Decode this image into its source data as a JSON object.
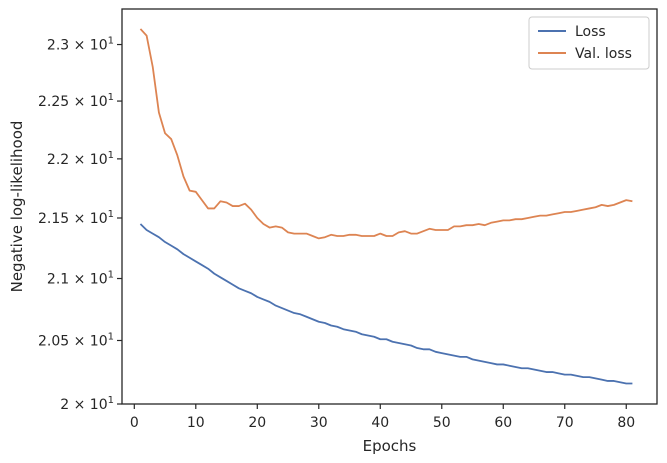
{
  "chart_data": {
    "type": "line",
    "xlabel": "Epochs",
    "ylabel": "Negative log-likelihood",
    "xlim": [
      -2,
      85
    ],
    "ylim": [
      20.0,
      23.32
    ],
    "xticks": [
      0,
      10,
      20,
      30,
      40,
      50,
      60,
      70,
      80
    ],
    "yticks": [
      {
        "value": 20.0,
        "mantissa": "2",
        "exponent": "1"
      },
      {
        "value": 20.5,
        "mantissa": "2.05",
        "exponent": "1"
      },
      {
        "value": 21.0,
        "mantissa": "2.1",
        "exponent": "1"
      },
      {
        "value": 21.5,
        "mantissa": "2.15",
        "exponent": "1"
      },
      {
        "value": 22.0,
        "mantissa": "2.2",
        "exponent": "1"
      },
      {
        "value": 22.5,
        "mantissa": "2.25",
        "exponent": "1"
      },
      {
        "value": 23.0,
        "mantissa": "2.3",
        "exponent": "1"
      }
    ],
    "yscale": "log",
    "grid": false,
    "legend_position": "top-right",
    "x": [
      1,
      2,
      3,
      4,
      5,
      6,
      7,
      8,
      9,
      10,
      11,
      12,
      13,
      14,
      15,
      16,
      17,
      18,
      19,
      20,
      21,
      22,
      23,
      24,
      25,
      26,
      27,
      28,
      29,
      30,
      31,
      32,
      33,
      34,
      35,
      36,
      37,
      38,
      39,
      40,
      41,
      42,
      43,
      44,
      45,
      46,
      47,
      48,
      49,
      50,
      51,
      52,
      53,
      54,
      55,
      56,
      57,
      58,
      59,
      60,
      61,
      62,
      63,
      64,
      65,
      66,
      67,
      68,
      69,
      70,
      71,
      72,
      73,
      74,
      75,
      76,
      77,
      78,
      79,
      80,
      81
    ],
    "series": [
      {
        "name": "Loss",
        "color": "#4c72b0",
        "values": [
          21.45,
          21.4,
          21.37,
          21.34,
          21.3,
          21.27,
          21.24,
          21.2,
          21.17,
          21.14,
          21.11,
          21.08,
          21.04,
          21.01,
          20.98,
          20.95,
          20.92,
          20.9,
          20.88,
          20.85,
          20.83,
          20.81,
          20.78,
          20.76,
          20.74,
          20.72,
          20.71,
          20.69,
          20.67,
          20.65,
          20.64,
          20.62,
          20.61,
          20.59,
          20.58,
          20.57,
          20.55,
          20.54,
          20.53,
          20.51,
          20.51,
          20.49,
          20.48,
          20.47,
          20.46,
          20.44,
          20.43,
          20.43,
          20.41,
          20.4,
          20.39,
          20.38,
          20.37,
          20.37,
          20.35,
          20.34,
          20.33,
          20.32,
          20.31,
          20.31,
          20.3,
          20.29,
          20.28,
          20.28,
          20.27,
          20.26,
          20.25,
          20.25,
          20.24,
          20.23,
          20.23,
          20.22,
          20.21,
          20.21,
          20.2,
          20.19,
          20.18,
          20.18,
          20.17,
          20.16,
          20.16
        ]
      },
      {
        "name": "Val. loss",
        "color": "#dd8452",
        "values": [
          23.14,
          23.08,
          22.8,
          22.4,
          22.22,
          22.17,
          22.03,
          21.85,
          21.73,
          21.72,
          21.65,
          21.58,
          21.58,
          21.64,
          21.63,
          21.6,
          21.6,
          21.62,
          21.57,
          21.5,
          21.45,
          21.42,
          21.43,
          21.42,
          21.38,
          21.37,
          21.37,
          21.37,
          21.35,
          21.33,
          21.34,
          21.36,
          21.35,
          21.35,
          21.36,
          21.36,
          21.35,
          21.35,
          21.35,
          21.37,
          21.35,
          21.35,
          21.38,
          21.39,
          21.37,
          21.37,
          21.39,
          21.41,
          21.4,
          21.4,
          21.4,
          21.43,
          21.43,
          21.44,
          21.44,
          21.45,
          21.44,
          21.46,
          21.47,
          21.48,
          21.48,
          21.49,
          21.49,
          21.5,
          21.51,
          21.52,
          21.52,
          21.53,
          21.54,
          21.55,
          21.55,
          21.56,
          21.57,
          21.58,
          21.59,
          21.61,
          21.6,
          21.61,
          21.63,
          21.65,
          21.64
        ]
      }
    ]
  }
}
